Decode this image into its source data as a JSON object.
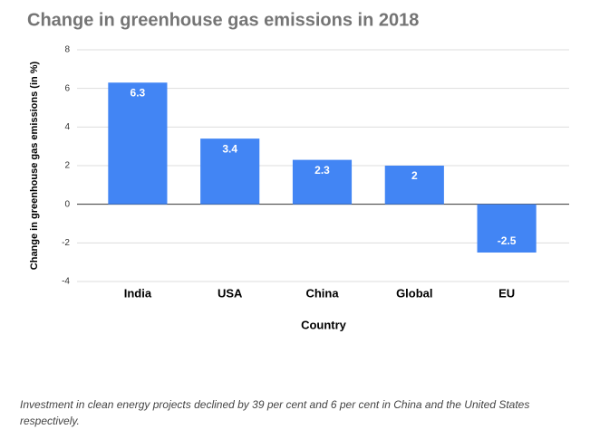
{
  "chart_data": {
    "type": "bar",
    "title": "Change in greenhouse gas emissions in 2018",
    "x_label": "Country",
    "y_label": "Change in greenhouse gas emissions (in %)",
    "categories": [
      "India",
      "USA",
      "China",
      "Global",
      "EU"
    ],
    "values": [
      6.3,
      3.4,
      2.3,
      2,
      -2.5
    ],
    "color": "#4285f4",
    "ylim": [
      -4,
      8
    ],
    "yticks": [
      -4,
      -2,
      0,
      2,
      4,
      6,
      8
    ],
    "grid": true,
    "data_labels": true
  },
  "caption": "Investment in clean energy projects declined by 39 per cent and 6 per cent in China and the United States respectively."
}
